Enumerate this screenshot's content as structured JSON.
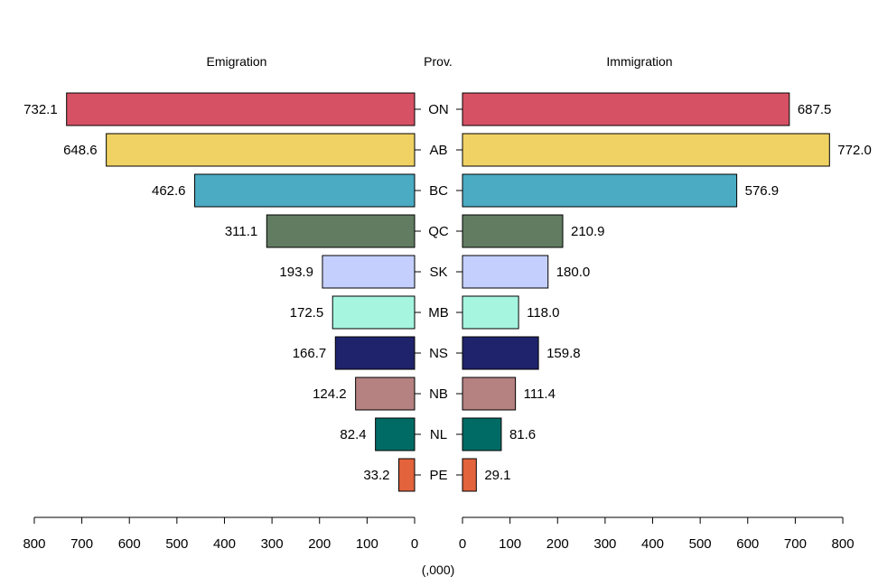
{
  "chart_data": {
    "type": "bar",
    "orientation": "horizontal-back-to-back",
    "headers": {
      "left": "Emigration",
      "center": "Prov.",
      "right": "Immigration"
    },
    "unit_label": "(,000)",
    "categories": [
      "ON",
      "AB",
      "BC",
      "QC",
      "SK",
      "MB",
      "NS",
      "NB",
      "NL",
      "PE"
    ],
    "series": [
      {
        "side": "left",
        "values": [
          732.1,
          648.6,
          462.6,
          311.1,
          193.9,
          172.5,
          166.7,
          124.2,
          82.4,
          33.2
        ],
        "labels": [
          "732.1",
          "648.6",
          "462.6",
          "311.1",
          "193.9",
          "172.5",
          "166.7",
          "124.2",
          "82.4",
          "33.2"
        ]
      },
      {
        "side": "right",
        "values": [
          687.5,
          772.0,
          576.9,
          210.9,
          180.0,
          118.0,
          159.8,
          111.4,
          81.6,
          29.1
        ],
        "labels": [
          "687.5",
          "772.0",
          "576.9",
          "210.9",
          "180.0",
          "118.0",
          "159.8",
          "111.4",
          "81.6",
          "29.1"
        ]
      }
    ],
    "colors": [
      "#d75164",
      "#f0d264",
      "#4aabc3",
      "#627c62",
      "#c4cffd",
      "#a5f5df",
      "#1f236b",
      "#b58181",
      "#006b64",
      "#e2633c"
    ],
    "xlim": [
      0,
      800
    ],
    "xticks": [
      0,
      100,
      200,
      300,
      400,
      500,
      600,
      700,
      800
    ],
    "xtick_labels": [
      "0",
      "100",
      "200",
      "300",
      "400",
      "500",
      "600",
      "700",
      "800"
    ],
    "grid": false,
    "legend": "none"
  }
}
